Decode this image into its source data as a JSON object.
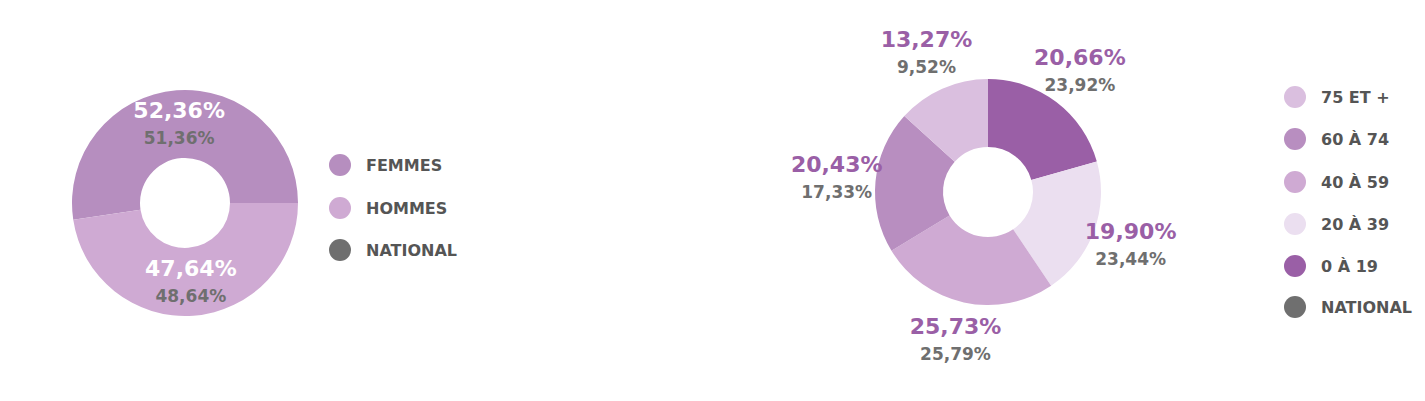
{
  "chart_data": [
    {
      "type": "pie",
      "categories": [
        "FEMMES",
        "HOMMES"
      ],
      "values": [
        52.36,
        47.64
      ],
      "value_labels": [
        "52,36%",
        "47,64%"
      ],
      "colors": [
        "#b68ebf",
        "#cfaad3"
      ],
      "data_labels": true,
      "series": [
        {
          "name": "NATIONAL",
          "color": "#6f6f6f",
          "values": [
            51.36,
            48.64
          ],
          "value_labels": [
            "51,36%",
            "48,64%"
          ]
        }
      ]
    },
    {
      "type": "pie",
      "categories": [
        "0 À 19",
        "20 À 39",
        "40 À 59",
        "60 À 74",
        "75 ET +"
      ],
      "values": [
        20.66,
        19.9,
        25.73,
        20.43,
        13.27
      ],
      "value_labels": [
        "20,66%",
        "19,90%",
        "25,73%",
        "20,43%",
        "13,27%"
      ],
      "colors": [
        "#9a5fa6",
        "#ebdff0",
        "#cfaad3",
        "#b88ec0",
        "#dabfdf"
      ],
      "data_labels": true,
      "series": [
        {
          "name": "NATIONAL",
          "color": "#6f6f6f",
          "values": [
            23.92,
            23.44,
            25.79,
            17.33,
            9.52
          ],
          "value_labels": [
            "23,92%",
            "23,44%",
            "25,79%",
            "17,33%",
            "9,52%"
          ]
        }
      ]
    }
  ]
}
